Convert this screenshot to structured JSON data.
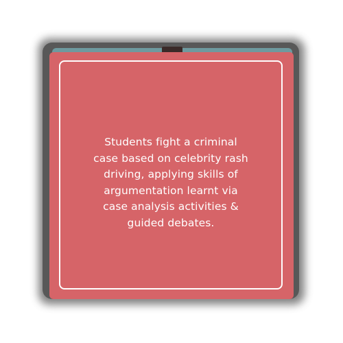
{
  "card": {
    "lines": [
      "Students fight a criminal",
      "case based on celebrity rash",
      "driving, applying skills of",
      "argumentation learnt via",
      "case analysis activities &",
      "guided debates."
    ]
  },
  "colors": {
    "card_front": "#d66468",
    "card_back": "#585858",
    "strip": "#6e9a9f",
    "frame": "#ffffff",
    "text": "#ffffff"
  }
}
